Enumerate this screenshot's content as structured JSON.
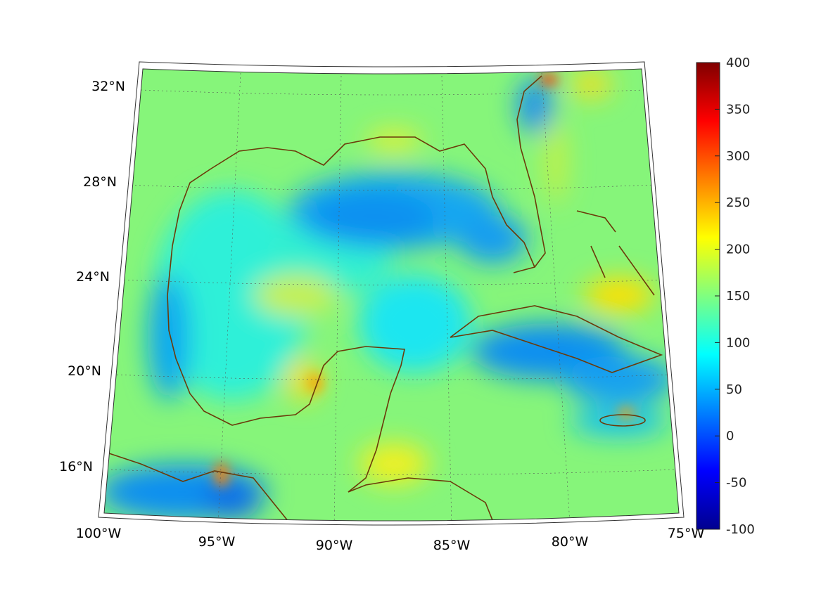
{
  "map": {
    "projection_extent": {
      "lon": [
        -100,
        -75
      ],
      "lat": [
        14,
        32.5
      ]
    },
    "lat_labels": [
      "32°N",
      "28°N",
      "24°N",
      "20°N",
      "16°N"
    ],
    "lon_labels": [
      "100°W",
      "95°W",
      "90°W",
      "85°W",
      "80°W",
      "75°W"
    ],
    "coast_color": "#6b3a0a",
    "background_value_color": "#86f57a"
  },
  "colorbar": {
    "range": [
      -100,
      400
    ],
    "ticks": [
      "400",
      "350",
      "300",
      "250",
      "200",
      "150",
      "100",
      "50",
      "0",
      "-50",
      "-100"
    ],
    "colormap": "jet"
  }
}
